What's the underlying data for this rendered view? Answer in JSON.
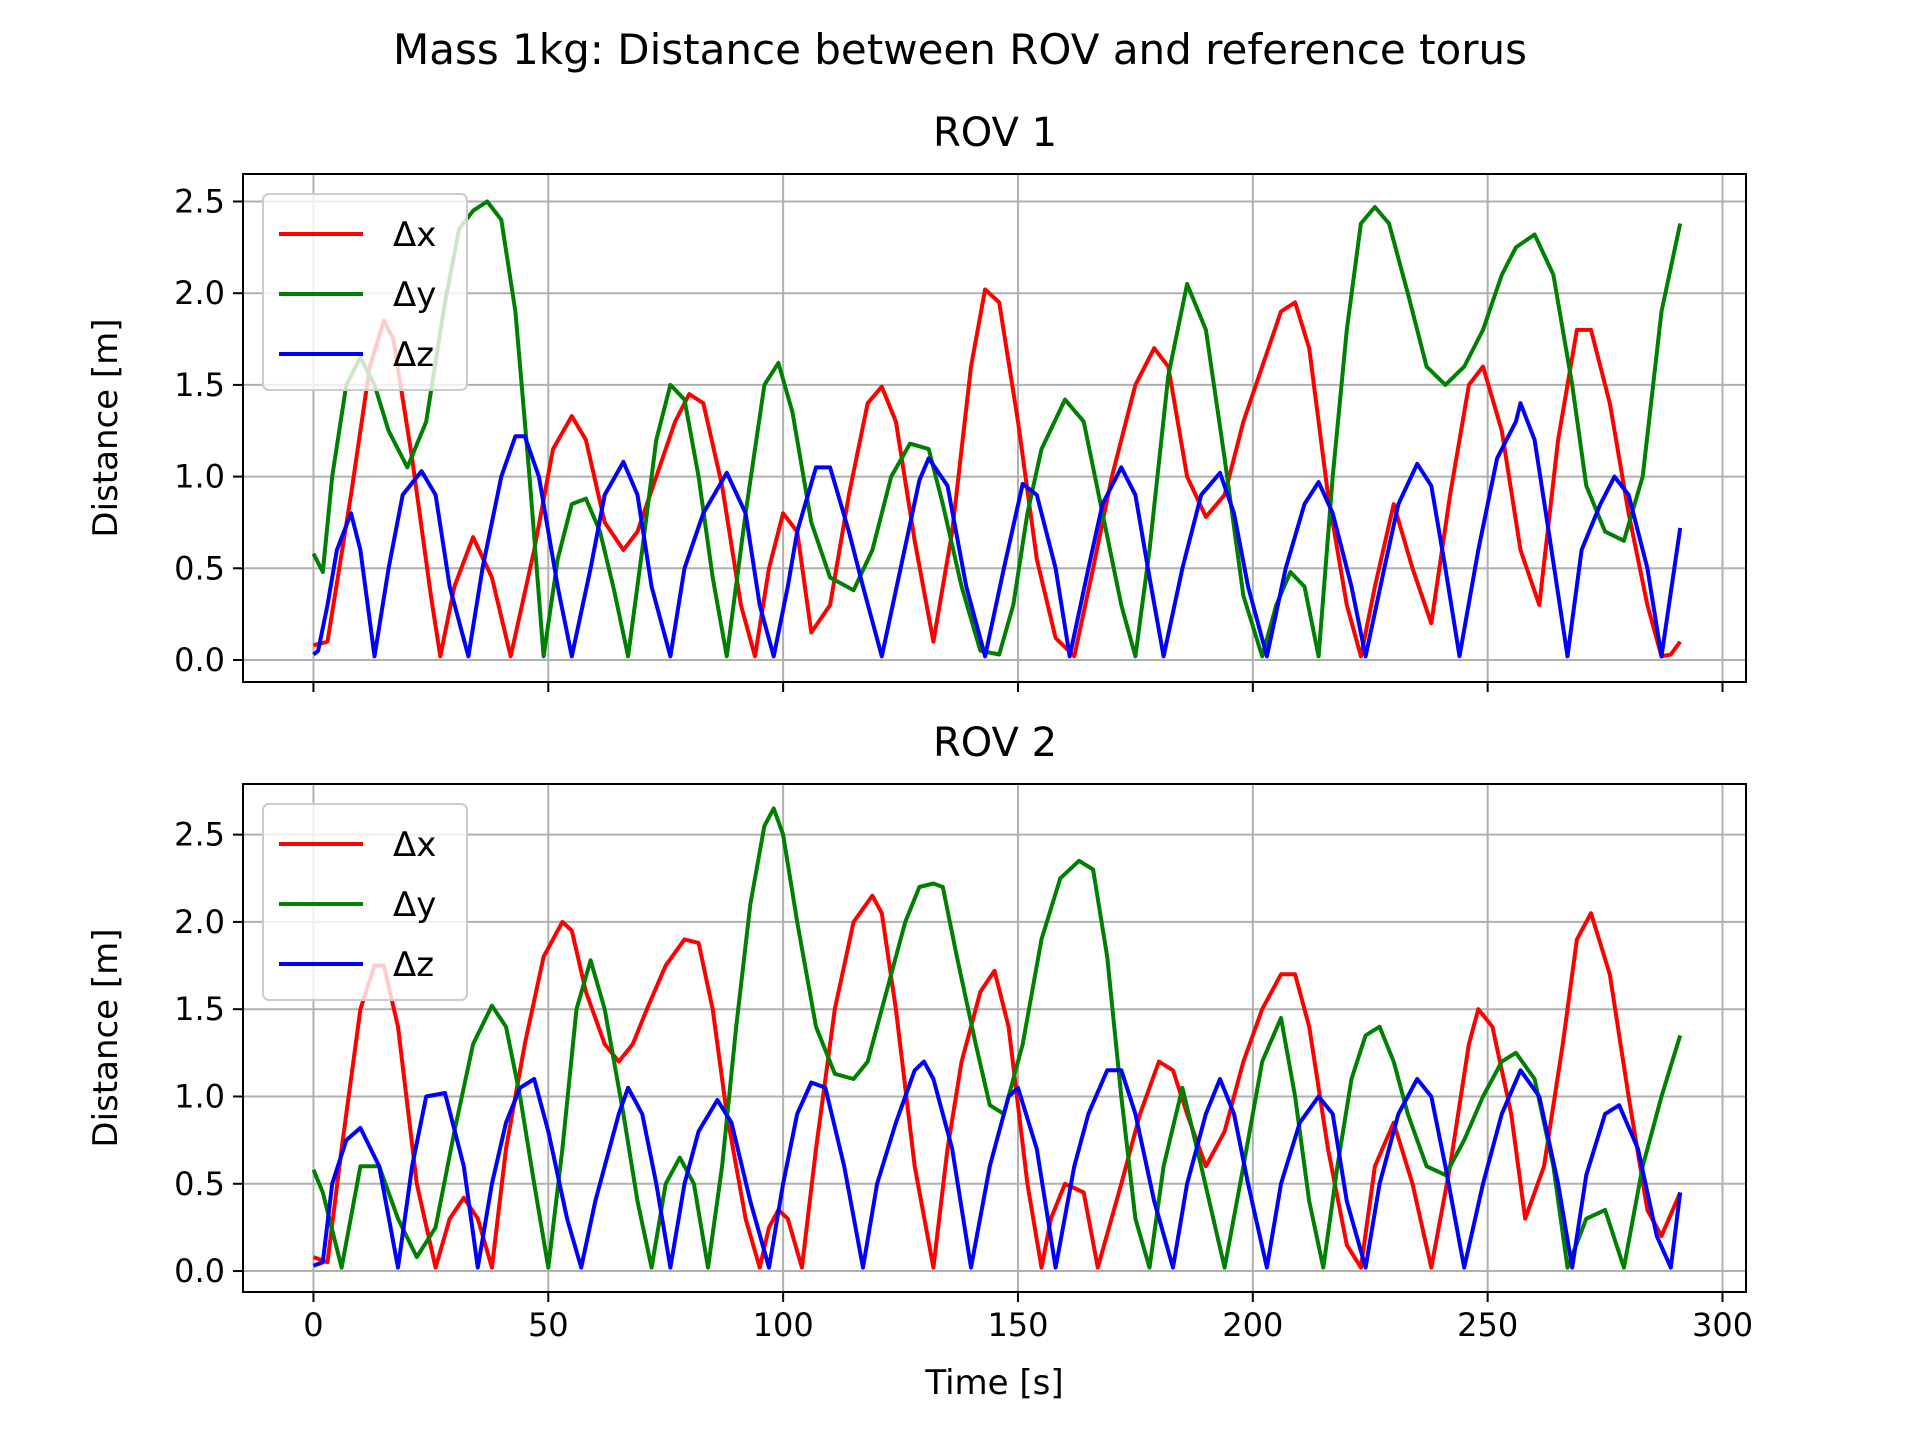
{
  "figure": {
    "title": "Mass 1kg: Distance between ROV and reference torus"
  },
  "chart_data": [
    {
      "type": "line",
      "title": "ROV 1",
      "xlabel": "",
      "ylabel": "Distance [m]",
      "xlim": [
        -15,
        305
      ],
      "ylim": [
        -0.12,
        2.65
      ],
      "xticks": [
        0,
        50,
        100,
        150,
        200,
        250,
        300
      ],
      "xticklabels": [
        "",
        "",
        "",
        "",
        "",
        "",
        ""
      ],
      "yticks": [
        0.0,
        0.5,
        1.0,
        1.5,
        2.0,
        2.5
      ],
      "yticklabels": [
        "0.0",
        "0.5",
        "1.0",
        "1.5",
        "2.0",
        "2.5"
      ],
      "grid": true,
      "legend": "upper-left",
      "series": [
        {
          "name": "Δx",
          "color": "#ff0000",
          "x": [
            0,
            3,
            8,
            12,
            15,
            17,
            21,
            25,
            27,
            30,
            34,
            38,
            42,
            47,
            51,
            55,
            58,
            62,
            66,
            69,
            73,
            77,
            80,
            83,
            87,
            91,
            94,
            97,
            100,
            103,
            106,
            110,
            114,
            118,
            121,
            124,
            128,
            132,
            136,
            140,
            143,
            146,
            150,
            154,
            158,
            162,
            166,
            170,
            175,
            179,
            182,
            186,
            190,
            194,
            198,
            202,
            206,
            209,
            212,
            216,
            220,
            223,
            226,
            230,
            234,
            238,
            242,
            246,
            249,
            253,
            257,
            261,
            265,
            269,
            272,
            276,
            280,
            284,
            287,
            289,
            291
          ],
          "y": [
            0.08,
            0.1,
            0.9,
            1.6,
            1.85,
            1.75,
            1.1,
            0.35,
            0.02,
            0.4,
            0.67,
            0.45,
            0.02,
            0.6,
            1.15,
            1.33,
            1.2,
            0.75,
            0.6,
            0.7,
            1.0,
            1.3,
            1.45,
            1.4,
            0.95,
            0.3,
            0.02,
            0.5,
            0.8,
            0.7,
            0.15,
            0.3,
            0.9,
            1.4,
            1.49,
            1.3,
            0.65,
            0.1,
            0.7,
            1.6,
            2.02,
            1.95,
            1.3,
            0.55,
            0.12,
            0.02,
            0.5,
            1.0,
            1.5,
            1.7,
            1.6,
            1.0,
            0.78,
            0.9,
            1.3,
            1.6,
            1.9,
            1.95,
            1.7,
            0.9,
            0.3,
            0.02,
            0.4,
            0.85,
            0.5,
            0.2,
            0.9,
            1.5,
            1.6,
            1.25,
            0.6,
            0.3,
            1.2,
            1.8,
            1.8,
            1.4,
            0.8,
            0.3,
            0.02,
            0.03,
            0.1
          ]
        },
        {
          "name": "Δy",
          "color": "#008000",
          "x": [
            0,
            2,
            4,
            7,
            10,
            13,
            16,
            20,
            24,
            28,
            31,
            34,
            37,
            40,
            43,
            46,
            49,
            52,
            55,
            58,
            61,
            64,
            67,
            70,
            73,
            76,
            79,
            82,
            85,
            88,
            92,
            96,
            99,
            102,
            106,
            110,
            115,
            119,
            123,
            127,
            131,
            134,
            138,
            142,
            146,
            149,
            152,
            155,
            160,
            164,
            168,
            172,
            175,
            178,
            182,
            186,
            190,
            194,
            198,
            202,
            205,
            208,
            211,
            214,
            217,
            220,
            223,
            226,
            229,
            233,
            237,
            241,
            245,
            249,
            253,
            256,
            260,
            264,
            268,
            271,
            275,
            279,
            283,
            287,
            291
          ],
          "y": [
            0.58,
            0.48,
            1.0,
            1.5,
            1.65,
            1.5,
            1.25,
            1.05,
            1.3,
            1.95,
            2.35,
            2.45,
            2.5,
            2.4,
            1.9,
            1.0,
            0.02,
            0.55,
            0.85,
            0.88,
            0.7,
            0.38,
            0.02,
            0.6,
            1.2,
            1.5,
            1.42,
            1.0,
            0.45,
            0.02,
            0.8,
            1.5,
            1.62,
            1.35,
            0.75,
            0.45,
            0.38,
            0.6,
            1.0,
            1.18,
            1.15,
            0.85,
            0.4,
            0.05,
            0.03,
            0.3,
            0.8,
            1.15,
            1.42,
            1.3,
            0.8,
            0.3,
            0.02,
            0.6,
            1.55,
            2.05,
            1.8,
            1.1,
            0.35,
            0.02,
            0.3,
            0.48,
            0.4,
            0.02,
            1.0,
            1.8,
            2.38,
            2.47,
            2.38,
            2.0,
            1.6,
            1.5,
            1.6,
            1.8,
            2.1,
            2.25,
            2.32,
            2.1,
            1.5,
            0.95,
            0.7,
            0.65,
            1.0,
            1.9,
            2.38
          ]
        },
        {
          "name": "Δz",
          "color": "#0000ff",
          "x": [
            0,
            1,
            3,
            5,
            8,
            10,
            13,
            16,
            19,
            23,
            26,
            29,
            33,
            36,
            40,
            43,
            45,
            48,
            52,
            55,
            59,
            62,
            66,
            69,
            72,
            76,
            79,
            83,
            88,
            92,
            95,
            98,
            101,
            103,
            107,
            110,
            114,
            117,
            121,
            125,
            129,
            131,
            135,
            139,
            143,
            147,
            151,
            154,
            158,
            161,
            165,
            168,
            172,
            175,
            178,
            181,
            185,
            189,
            193,
            196,
            199,
            203,
            207,
            211,
            214,
            217,
            221,
            224,
            228,
            231,
            235,
            238,
            241,
            244,
            248,
            252,
            256,
            257,
            260,
            263,
            267,
            270,
            274,
            277,
            280,
            284,
            287,
            291
          ],
          "y": [
            0.03,
            0.05,
            0.3,
            0.6,
            0.8,
            0.6,
            0.02,
            0.5,
            0.9,
            1.03,
            0.9,
            0.4,
            0.02,
            0.5,
            1.0,
            1.22,
            1.22,
            1.0,
            0.4,
            0.02,
            0.5,
            0.9,
            1.08,
            0.9,
            0.4,
            0.02,
            0.5,
            0.8,
            1.02,
            0.8,
            0.3,
            0.02,
            0.4,
            0.7,
            1.05,
            1.05,
            0.7,
            0.4,
            0.02,
            0.5,
            0.98,
            1.1,
            0.95,
            0.4,
            0.02,
            0.5,
            0.96,
            0.9,
            0.5,
            0.02,
            0.5,
            0.85,
            1.05,
            0.9,
            0.45,
            0.02,
            0.5,
            0.9,
            1.02,
            0.8,
            0.4,
            0.02,
            0.5,
            0.85,
            0.97,
            0.8,
            0.4,
            0.02,
            0.5,
            0.85,
            1.07,
            0.95,
            0.5,
            0.02,
            0.6,
            1.1,
            1.3,
            1.4,
            1.2,
            0.7,
            0.02,
            0.6,
            0.85,
            1.0,
            0.9,
            0.5,
            0.02,
            0.72
          ]
        }
      ]
    },
    {
      "type": "line",
      "title": "ROV 2",
      "xlabel": "Time [s]",
      "ylabel": "Distance [m]",
      "xlim": [
        -15,
        305
      ],
      "ylim": [
        -0.12,
        2.79
      ],
      "xticks": [
        0,
        50,
        100,
        150,
        200,
        250,
        300
      ],
      "xticklabels": [
        "0",
        "50",
        "100",
        "150",
        "200",
        "250",
        "300"
      ],
      "yticks": [
        0.0,
        0.5,
        1.0,
        1.5,
        2.0,
        2.5
      ],
      "yticklabels": [
        "0.0",
        "0.5",
        "1.0",
        "1.5",
        "2.0",
        "2.5"
      ],
      "grid": true,
      "legend": "upper-left",
      "series": [
        {
          "name": "Δx",
          "color": "#ff0000",
          "x": [
            0,
            3,
            6,
            10,
            13,
            15,
            18,
            22,
            26,
            29,
            32,
            35,
            38,
            41,
            45,
            49,
            53,
            55,
            58,
            62,
            65,
            68,
            71,
            75,
            79,
            82,
            85,
            88,
            92,
            95,
            97,
            99,
            101,
            104,
            107,
            111,
            115,
            119,
            121,
            124,
            128,
            132,
            135,
            138,
            142,
            145,
            148,
            152,
            155,
            157,
            160,
            164,
            167,
            172,
            176,
            180,
            183,
            186,
            190,
            194,
            198,
            202,
            206,
            209,
            212,
            216,
            220,
            223,
            226,
            230,
            234,
            238,
            242,
            246,
            248,
            251,
            255,
            258,
            262,
            266,
            269,
            272,
            276,
            280,
            284,
            287,
            291
          ],
          "y": [
            0.08,
            0.05,
            0.7,
            1.5,
            1.75,
            1.75,
            1.4,
            0.5,
            0.02,
            0.3,
            0.42,
            0.3,
            0.02,
            0.7,
            1.3,
            1.8,
            2.0,
            1.95,
            1.6,
            1.3,
            1.2,
            1.3,
            1.5,
            1.75,
            1.9,
            1.88,
            1.5,
            0.9,
            0.3,
            0.02,
            0.25,
            0.35,
            0.3,
            0.02,
            0.7,
            1.5,
            2.0,
            2.15,
            2.05,
            1.5,
            0.6,
            0.02,
            0.7,
            1.2,
            1.6,
            1.72,
            1.4,
            0.5,
            0.02,
            0.3,
            0.5,
            0.45,
            0.02,
            0.5,
            0.9,
            1.2,
            1.15,
            0.9,
            0.6,
            0.8,
            1.2,
            1.5,
            1.7,
            1.7,
            1.4,
            0.7,
            0.15,
            0.02,
            0.6,
            0.85,
            0.5,
            0.02,
            0.6,
            1.3,
            1.5,
            1.4,
            0.9,
            0.3,
            0.6,
            1.3,
            1.9,
            2.05,
            1.7,
            1.0,
            0.35,
            0.2,
            0.45
          ]
        },
        {
          "name": "Δy",
          "color": "#008000",
          "x": [
            0,
            2,
            6,
            10,
            14,
            18,
            22,
            26,
            30,
            34,
            38,
            41,
            44,
            47,
            50,
            53,
            56,
            59,
            62,
            66,
            69,
            72,
            75,
            78,
            81,
            84,
            87,
            90,
            93,
            96,
            98,
            100,
            103,
            107,
            111,
            115,
            118,
            122,
            126,
            129,
            132,
            134,
            137,
            141,
            144,
            147,
            151,
            155,
            159,
            163,
            166,
            169,
            172,
            175,
            178,
            181,
            185,
            189,
            194,
            198,
            202,
            206,
            209,
            212,
            215,
            218,
            221,
            224,
            227,
            230,
            233,
            237,
            241,
            245,
            249,
            253,
            256,
            260,
            264,
            267,
            271,
            275,
            279,
            283,
            287,
            291
          ],
          "y": [
            0.58,
            0.45,
            0.02,
            0.6,
            0.6,
            0.3,
            0.08,
            0.25,
            0.8,
            1.3,
            1.52,
            1.4,
            1.0,
            0.5,
            0.02,
            0.7,
            1.5,
            1.78,
            1.5,
            0.9,
            0.4,
            0.02,
            0.5,
            0.65,
            0.5,
            0.02,
            0.6,
            1.4,
            2.1,
            2.55,
            2.65,
            2.5,
            2.0,
            1.4,
            1.13,
            1.1,
            1.2,
            1.6,
            2.0,
            2.2,
            2.22,
            2.2,
            1.8,
            1.3,
            0.95,
            0.9,
            1.3,
            1.9,
            2.25,
            2.35,
            2.3,
            1.8,
            1.0,
            0.3,
            0.02,
            0.6,
            1.05,
            0.6,
            0.02,
            0.6,
            1.2,
            1.45,
            1.0,
            0.4,
            0.02,
            0.6,
            1.1,
            1.35,
            1.4,
            1.2,
            0.9,
            0.6,
            0.55,
            0.75,
            1.0,
            1.2,
            1.25,
            1.1,
            0.6,
            0.02,
            0.3,
            0.35,
            0.02,
            0.6,
            1.0,
            1.35
          ]
        },
        {
          "name": "Δz",
          "color": "#0000ff",
          "x": [
            0,
            2,
            4,
            7,
            10,
            14,
            18,
            21,
            24,
            28,
            32,
            35,
            38,
            41,
            44,
            47,
            50,
            54,
            57,
            60,
            63,
            65,
            67,
            70,
            73,
            76,
            79,
            82,
            86,
            89,
            93,
            97,
            100,
            103,
            106,
            109,
            113,
            117,
            120,
            124,
            128,
            130,
            132,
            136,
            140,
            144,
            148,
            150,
            154,
            158,
            162,
            165,
            169,
            172,
            175,
            179,
            183,
            186,
            190,
            193,
            196,
            199,
            203,
            206,
            210,
            214,
            217,
            220,
            224,
            227,
            231,
            235,
            238,
            241,
            245,
            249,
            253,
            257,
            261,
            265,
            268,
            271,
            275,
            278,
            282,
            286,
            289,
            291
          ],
          "y": [
            0.03,
            0.05,
            0.5,
            0.75,
            0.82,
            0.6,
            0.02,
            0.6,
            1.0,
            1.02,
            0.6,
            0.02,
            0.5,
            0.85,
            1.05,
            1.1,
            0.8,
            0.3,
            0.02,
            0.4,
            0.7,
            0.9,
            1.05,
            0.9,
            0.5,
            0.02,
            0.5,
            0.8,
            0.98,
            0.85,
            0.4,
            0.02,
            0.5,
            0.9,
            1.08,
            1.05,
            0.6,
            0.02,
            0.5,
            0.85,
            1.15,
            1.2,
            1.1,
            0.7,
            0.02,
            0.6,
            1.0,
            1.05,
            0.7,
            0.02,
            0.6,
            0.9,
            1.15,
            1.15,
            0.9,
            0.4,
            0.02,
            0.5,
            0.9,
            1.1,
            0.9,
            0.5,
            0.02,
            0.5,
            0.85,
            1.0,
            0.9,
            0.4,
            0.02,
            0.5,
            0.9,
            1.1,
            1.0,
            0.6,
            0.02,
            0.5,
            0.9,
            1.15,
            1.0,
            0.5,
            0.02,
            0.55,
            0.9,
            0.95,
            0.7,
            0.2,
            0.02,
            0.45
          ]
        }
      ]
    }
  ]
}
